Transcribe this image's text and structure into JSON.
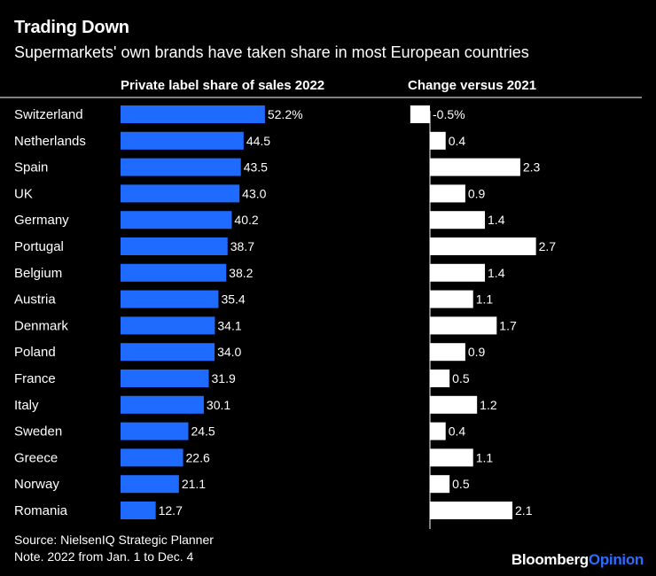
{
  "title": "Trading Down",
  "subtitle": "Supermarkets' own brands have taken share in most European countries",
  "colors": {
    "background": "#000000",
    "share_bar": "#1f6bff",
    "change_bar": "#ffffff",
    "text": "#ffffff",
    "brand_accent": "#2b6dff"
  },
  "chart_data": {
    "type": "bar",
    "orientation": "horizontal",
    "categories": [
      "Switzerland",
      "Netherlands",
      "Spain",
      "UK",
      "Germany",
      "Portugal",
      "Belgium",
      "Austria",
      "Denmark",
      "Poland",
      "France",
      "Italy",
      "Sweden",
      "Greece",
      "Norway",
      "Romania"
    ],
    "panels": [
      {
        "title": "Private label share of sales 2022",
        "series": [
          {
            "values": [
              52.2,
              44.5,
              43.5,
              43.0,
              40.2,
              38.7,
              38.2,
              35.4,
              34.1,
              34.0,
              31.9,
              30.1,
              24.5,
              22.6,
              21.1,
              12.7
            ]
          }
        ],
        "labels": [
          "52.2%",
          "44.5",
          "43.5",
          "43.0",
          "40.2",
          "38.7",
          "38.2",
          "35.4",
          "34.1",
          "34.0",
          "31.9",
          "30.1",
          "24.5",
          "22.6",
          "21.1",
          "12.7"
        ],
        "xlim": [
          0,
          60
        ]
      },
      {
        "title": "Change versus 2021",
        "series": [
          {
            "values": [
              -0.5,
              0.4,
              2.3,
              0.9,
              1.4,
              2.7,
              1.4,
              1.1,
              1.7,
              0.9,
              0.5,
              1.2,
              0.4,
              1.1,
              0.5,
              2.1
            ]
          }
        ],
        "labels": [
          "-0.5%",
          "0.4",
          "2.3",
          "0.9",
          "1.4",
          "2.7",
          "1.4",
          "1.1",
          "1.7",
          "0.9",
          "0.5",
          "1.2",
          "0.4",
          "1.1",
          "0.5",
          "2.1"
        ],
        "xlim": [
          -0.5,
          2.7
        ]
      }
    ]
  },
  "footer": {
    "source": "Source: NielsenIQ Strategic Planner",
    "note": "Note. 2022 from Jan. 1 to Dec. 4"
  },
  "brand": {
    "part1": "Bloomberg",
    "part2": "Opinion"
  }
}
